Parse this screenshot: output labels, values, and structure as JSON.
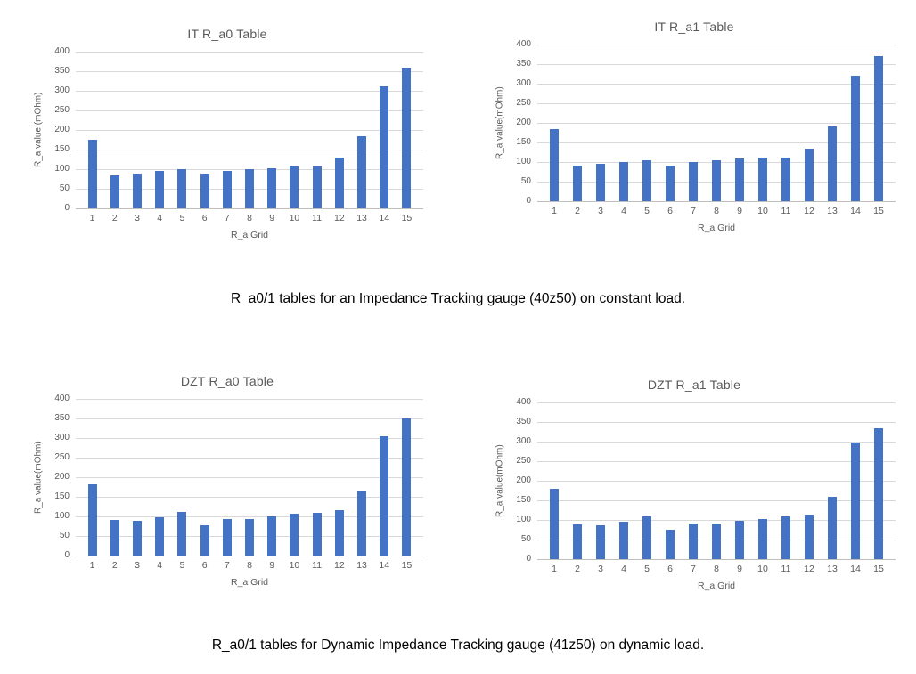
{
  "chart_style": {
    "bar_color": "#4472C4",
    "grid_color": "#D9D9D9",
    "axis_color": "#BFBFBF",
    "title_color": "#595959",
    "tick_color": "#595959"
  },
  "captions": {
    "top": "R_a0/1 tables for an Impedance Tracking gauge (40z50) on constant load.",
    "bottom": "R_a0/1 tables for Dynamic Impedance Tracking gauge (41z50) on dynamic load."
  },
  "chart_data": [
    {
      "type": "bar",
      "title": "IT R_a0 Table",
      "xlabel": "R_a Grid",
      "ylabel": "R_a value (mOhm)",
      "categories": [
        "1",
        "2",
        "3",
        "4",
        "5",
        "6",
        "7",
        "8",
        "9",
        "10",
        "11",
        "12",
        "13",
        "14",
        "15"
      ],
      "values": [
        175,
        85,
        88,
        95,
        100,
        88,
        95,
        100,
        103,
        106,
        107,
        130,
        183,
        312,
        358
      ],
      "ylim": [
        0,
        400
      ],
      "ytick_step": 50,
      "grid": true,
      "legend": "none"
    },
    {
      "type": "bar",
      "title": "IT R_a1 Table",
      "xlabel": "R_a Grid",
      "ylabel": "R_a value(mOhm)",
      "categories": [
        "1",
        "2",
        "3",
        "4",
        "5",
        "6",
        "7",
        "8",
        "9",
        "10",
        "11",
        "12",
        "13",
        "14",
        "15"
      ],
      "values": [
        185,
        92,
        95,
        100,
        105,
        92,
        100,
        105,
        109,
        112,
        112,
        133,
        190,
        320,
        370
      ],
      "ylim": [
        0,
        400
      ],
      "ytick_step": 50,
      "grid": true,
      "legend": "none"
    },
    {
      "type": "bar",
      "title": "DZT R_a0 Table",
      "xlabel": "R_a Grid",
      "ylabel": "R_a value(mOhm)",
      "categories": [
        "1",
        "2",
        "3",
        "4",
        "5",
        "6",
        "7",
        "8",
        "9",
        "10",
        "11",
        "12",
        "13",
        "14",
        "15"
      ],
      "values": [
        182,
        90,
        88,
        97,
        112,
        78,
        93,
        93,
        100,
        106,
        108,
        117,
        163,
        305,
        350
      ],
      "ylim": [
        0,
        400
      ],
      "ytick_step": 50,
      "grid": true,
      "legend": "none"
    },
    {
      "type": "bar",
      "title": "DZT R_a1 Table",
      "xlabel": "R_a Grid",
      "ylabel": "R_a value(mOhm)",
      "categories": [
        "1",
        "2",
        "3",
        "4",
        "5",
        "6",
        "7",
        "8",
        "9",
        "10",
        "11",
        "12",
        "13",
        "14",
        "15"
      ],
      "values": [
        180,
        88,
        87,
        95,
        110,
        75,
        90,
        92,
        98,
        103,
        108,
        113,
        158,
        297,
        335
      ],
      "ylim": [
        0,
        400
      ],
      "ytick_step": 50,
      "grid": true,
      "legend": "none"
    }
  ]
}
